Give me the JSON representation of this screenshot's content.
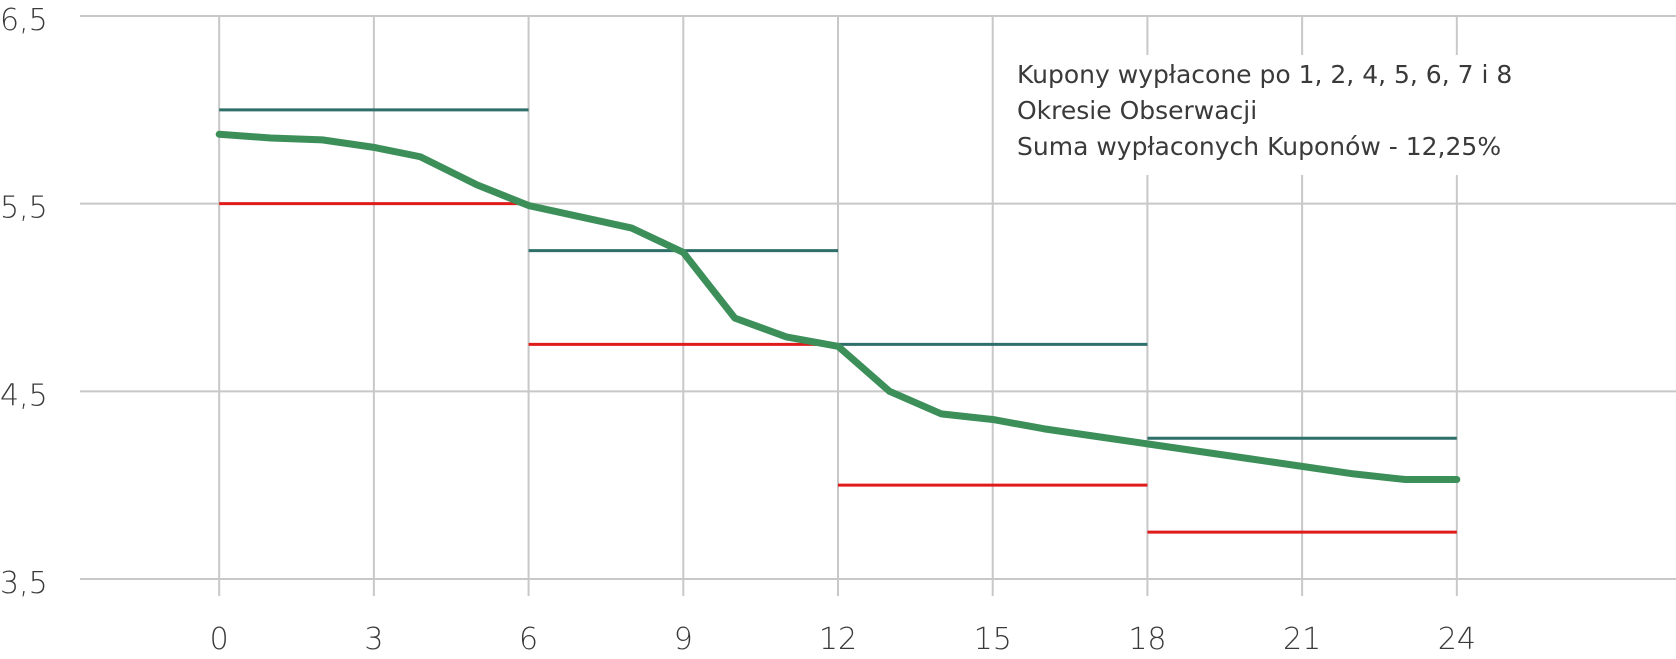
{
  "chart_data": {
    "type": "line",
    "title": "",
    "xlabel": "",
    "ylabel": "",
    "xlim": [
      -4.25,
      28.25
    ],
    "ylim": [
      3.5,
      6.5
    ],
    "x_ticks": [
      0,
      3,
      6,
      9,
      12,
      15,
      18,
      21,
      24
    ],
    "x_tick_labels": [
      "0",
      "3",
      "6",
      "9",
      "12",
      "15",
      "18",
      "21",
      "24"
    ],
    "y_ticks": [
      3.5,
      4.5,
      5.5,
      6.5
    ],
    "y_tick_labels": [
      "3,5",
      "4,5",
      "5,5",
      "6,5"
    ],
    "grid": true,
    "annotation": [
      "Kupony wypłacone po 1, 2, 4, 5, 6, 7 i 8",
      "Okresie Obserwacji",
      "Suma wypłaconych Kuponów - 12,25%"
    ],
    "series": [
      {
        "style": "line",
        "color": "#3d8f5a",
        "x": [
          0,
          1,
          2,
          3,
          3.9,
          5,
          6,
          7,
          8,
          9,
          10,
          11,
          12,
          13,
          14,
          15,
          16,
          17,
          18,
          19,
          20,
          21,
          22,
          23,
          24
        ],
        "y": [
          5.87,
          5.85,
          5.84,
          5.8,
          5.75,
          5.6,
          5.49,
          5.43,
          5.37,
          5.24,
          4.89,
          4.79,
          4.74,
          4.5,
          4.38,
          4.35,
          4.3,
          4.26,
          4.22,
          4.18,
          4.14,
          4.1,
          4.06,
          4.03,
          4.03
        ]
      },
      {
        "style": "steps",
        "color": "#2f6f6a",
        "segments": [
          {
            "x0": 0,
            "x1": 6,
            "y": 6.0
          },
          {
            "x0": 6,
            "x1": 12,
            "y": 5.25
          },
          {
            "x0": 12,
            "x1": 18,
            "y": 4.75
          },
          {
            "x0": 18,
            "x1": 24,
            "y": 4.25
          }
        ]
      },
      {
        "style": "steps",
        "color": "#e01b1b",
        "segments": [
          {
            "x0": 0,
            "x1": 6,
            "y": 5.5
          },
          {
            "x0": 6,
            "x1": 12,
            "y": 4.75
          },
          {
            "x0": 12,
            "x1": 18,
            "y": 4.0
          },
          {
            "x0": 18,
            "x1": 24,
            "y": 3.75
          }
        ]
      }
    ]
  }
}
